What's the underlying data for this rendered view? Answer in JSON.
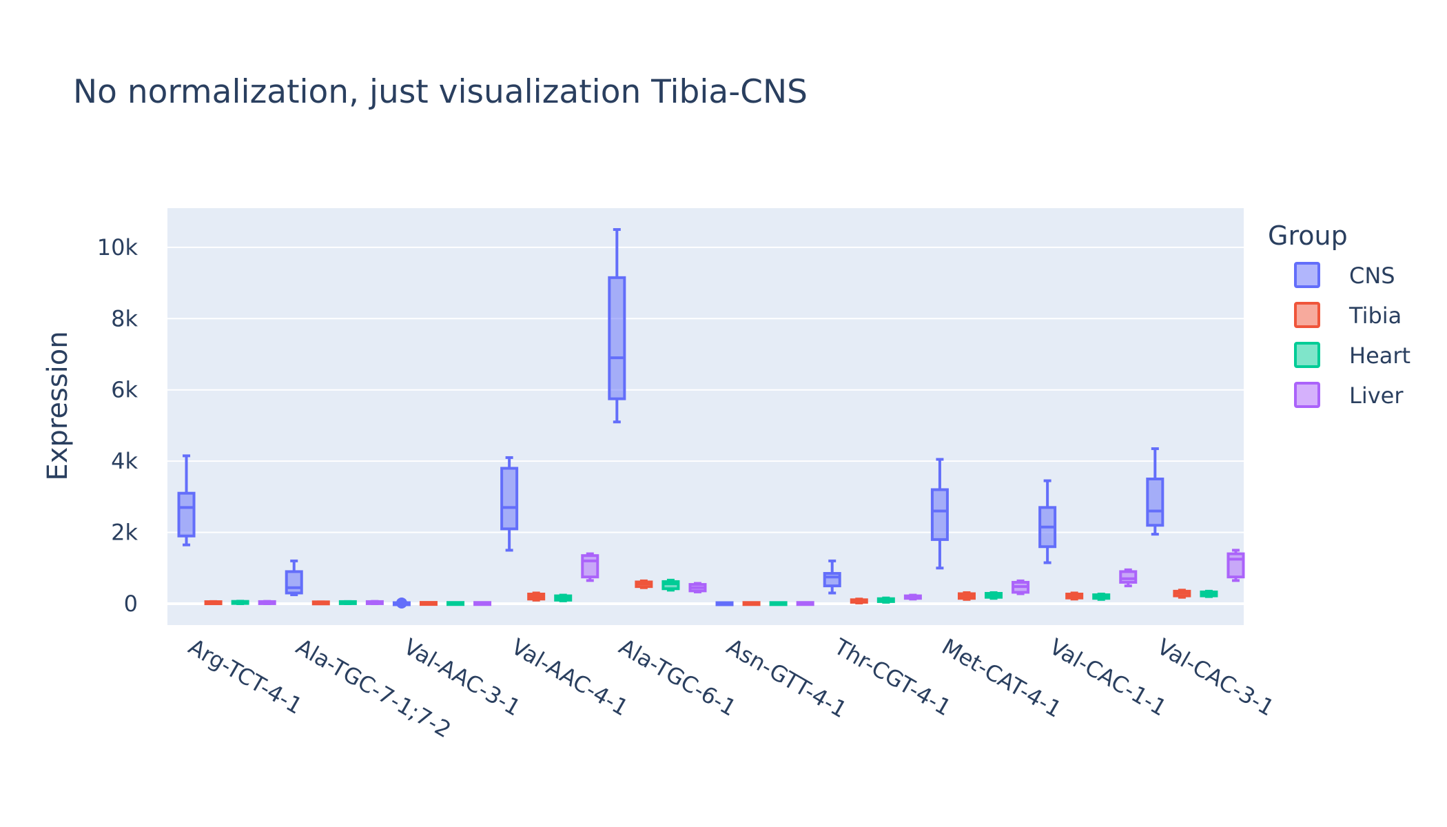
{
  "chart_data": {
    "type": "box",
    "title": "No normalization, just visualization Tibia-CNS",
    "xlabel": "",
    "ylabel": "Expression",
    "ylim": [
      -600,
      11100
    ],
    "yticks": [
      0,
      2000,
      4000,
      6000,
      8000,
      10000
    ],
    "ytick_labels": [
      "0",
      "2k",
      "4k",
      "6k",
      "8k",
      "10k"
    ],
    "grid": true,
    "legend": {
      "title": "Group",
      "placement": "right",
      "items": [
        "CNS",
        "Tibia",
        "Heart",
        "Liver"
      ]
    },
    "categories": [
      "Arg-TCT-4-1",
      "Ala-TGC-7-1;7-2",
      "Val-AAC-3-1",
      "Val-AAC-4-1",
      "Ala-TGC-6-1",
      "Asn-GTT-4-1",
      "Thr-CGT-4-1",
      "Met-CAT-4-1",
      "Val-CAC-1-1",
      "Val-CAC-3-1"
    ],
    "series": [
      {
        "name": "CNS",
        "color": "#636efa",
        "boxes": [
          {
            "min": 1650,
            "q1": 1900,
            "median": 2700,
            "q3": 3100,
            "max": 4150
          },
          {
            "min": 250,
            "q1": 300,
            "median": 450,
            "q3": 900,
            "max": 1200
          },
          {
            "min": 0,
            "q1": 0,
            "median": 0,
            "q3": 0,
            "max": 0,
            "outliers": [
              20
            ]
          },
          {
            "min": 1500,
            "q1": 2100,
            "median": 2700,
            "q3": 3800,
            "max": 4100
          },
          {
            "min": 5100,
            "q1": 5750,
            "median": 6900,
            "q3": 9150,
            "max": 10500
          },
          {
            "min": 0,
            "q1": 0,
            "median": 0,
            "q3": 0,
            "max": 0
          },
          {
            "min": 300,
            "q1": 500,
            "median": 750,
            "q3": 850,
            "max": 1200
          },
          {
            "min": 1000,
            "q1": 1800,
            "median": 2600,
            "q3": 3200,
            "max": 4050
          },
          {
            "min": 1150,
            "q1": 1600,
            "median": 2150,
            "q3": 2700,
            "max": 3450
          },
          {
            "min": 1950,
            "q1": 2200,
            "median": 2600,
            "q3": 3500,
            "max": 4350
          }
        ]
      },
      {
        "name": "Tibia",
        "color": "#ef553b",
        "boxes": [
          {
            "min": 0,
            "q1": 5,
            "median": 25,
            "q3": 50,
            "max": 60
          },
          {
            "min": 0,
            "q1": 5,
            "median": 20,
            "q3": 40,
            "max": 50
          },
          {
            "min": 0,
            "q1": 0,
            "median": 5,
            "q3": 15,
            "max": 20
          },
          {
            "min": 100,
            "q1": 130,
            "median": 200,
            "q3": 270,
            "max": 300
          },
          {
            "min": 450,
            "q1": 480,
            "median": 560,
            "q3": 610,
            "max": 640
          },
          {
            "min": 0,
            "q1": 0,
            "median": 3,
            "q3": 8,
            "max": 10
          },
          {
            "min": 20,
            "q1": 40,
            "median": 70,
            "q3": 110,
            "max": 130
          },
          {
            "min": 120,
            "q1": 150,
            "median": 220,
            "q3": 280,
            "max": 310
          },
          {
            "min": 130,
            "q1": 160,
            "median": 220,
            "q3": 270,
            "max": 300
          },
          {
            "min": 180,
            "q1": 220,
            "median": 300,
            "q3": 350,
            "max": 380
          }
        ]
      },
      {
        "name": "Heart",
        "color": "#00cc96",
        "boxes": [
          {
            "min": 0,
            "q1": 10,
            "median": 30,
            "q3": 60,
            "max": 70
          },
          {
            "min": 0,
            "q1": 10,
            "median": 25,
            "q3": 50,
            "max": 60
          },
          {
            "min": 0,
            "q1": 0,
            "median": 3,
            "q3": 10,
            "max": 15
          },
          {
            "min": 80,
            "q1": 100,
            "median": 160,
            "q3": 220,
            "max": 240
          },
          {
            "min": 380,
            "q1": 420,
            "median": 560,
            "q3": 620,
            "max": 660
          },
          {
            "min": 0,
            "q1": 0,
            "median": 2,
            "q3": 6,
            "max": 8
          },
          {
            "min": 40,
            "q1": 60,
            "median": 100,
            "q3": 140,
            "max": 160
          },
          {
            "min": 150,
            "q1": 180,
            "median": 240,
            "q3": 290,
            "max": 310
          },
          {
            "min": 120,
            "q1": 150,
            "median": 200,
            "q3": 250,
            "max": 270
          },
          {
            "min": 200,
            "q1": 220,
            "median": 290,
            "q3": 330,
            "max": 350
          }
        ]
      },
      {
        "name": "Liver",
        "color": "#ab63fa",
        "boxes": [
          {
            "min": 0,
            "q1": 5,
            "median": 25,
            "q3": 55,
            "max": 65
          },
          {
            "min": 0,
            "q1": 5,
            "median": 25,
            "q3": 55,
            "max": 65
          },
          {
            "min": 0,
            "q1": 0,
            "median": 3,
            "q3": 10,
            "max": 15
          },
          {
            "min": 650,
            "q1": 750,
            "median": 1200,
            "q3": 1350,
            "max": 1400
          },
          {
            "min": 330,
            "q1": 360,
            "median": 450,
            "q3": 540,
            "max": 570
          },
          {
            "min": 0,
            "q1": 0,
            "median": 3,
            "q3": 10,
            "max": 15
          },
          {
            "min": 130,
            "q1": 150,
            "median": 180,
            "q3": 220,
            "max": 240
          },
          {
            "min": 280,
            "q1": 320,
            "median": 480,
            "q3": 600,
            "max": 640
          },
          {
            "min": 500,
            "q1": 600,
            "median": 700,
            "q3": 900,
            "max": 950
          },
          {
            "min": 650,
            "q1": 750,
            "median": 1250,
            "q3": 1400,
            "max": 1500
          }
        ]
      }
    ]
  }
}
